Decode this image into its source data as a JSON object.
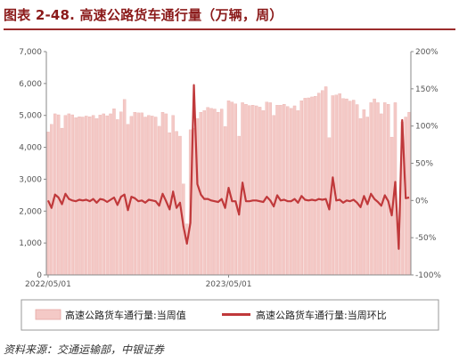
{
  "header": {
    "title": "图表 2-48. 高速公路货车通行量（万辆，周）"
  },
  "footer": {
    "source": "资料来源：交通运输部，中银证券"
  },
  "colors": {
    "bar_fill": "#f4c9c6",
    "bar_edge": "#e7a7a3",
    "line": "#c0393b",
    "title": "#8b1a1a"
  },
  "chart_data": {
    "type": "bar",
    "title": "",
    "xlabel": "",
    "ylabel": "",
    "ylim": [
      0,
      7000
    ],
    "y2lim": [
      -100,
      200
    ],
    "y_ticks": [
      "0",
      "1,000",
      "2,000",
      "3,000",
      "4,000",
      "5,000",
      "6,000",
      "7,000"
    ],
    "y2_ticks": [
      "-100%",
      "-50%",
      "0%",
      "50%",
      "100%",
      "150%",
      "200%"
    ],
    "x_tick_labels": [
      "2022/05/01",
      "2023/05/01"
    ],
    "legend_position": "bottom",
    "series": [
      {
        "name": "高速公路货车通行量:当周值",
        "type": "bar",
        "axis": "left",
        "values": [
          4480,
          4720,
          5050,
          5020,
          4600,
          5000,
          5050,
          5020,
          4930,
          4960,
          4950,
          4980,
          4960,
          5000,
          4900,
          5010,
          5050,
          4990,
          5050,
          5210,
          4870,
          5110,
          5500,
          4720,
          4970,
          5100,
          5080,
          5080,
          4950,
          5000,
          4980,
          4950,
          4660,
          5100,
          5050,
          4460,
          5000,
          4500,
          4350,
          2850,
          1600,
          4550,
          4600,
          4900,
          5100,
          5150,
          5250,
          5220,
          5200,
          5100,
          5200,
          4650,
          5460,
          5420,
          5360,
          4350,
          5400,
          5350,
          5310,
          5320,
          5300,
          5260,
          5150,
          5420,
          5400,
          5000,
          5320,
          5320,
          5350,
          5280,
          5220,
          5300,
          5150,
          5460,
          5540,
          5550,
          5580,
          5600,
          5700,
          5780,
          5900,
          4300,
          5620,
          5640,
          5680,
          5530,
          5520,
          5450,
          5480,
          5340,
          4900,
          5180,
          4950,
          5400,
          5520,
          5400,
          5050,
          5400,
          5350,
          4320,
          5400,
          1300,
          4800,
          4950,
          5100
        ]
      },
      {
        "name": "高速公路货车通行量:当周环比",
        "type": "line",
        "axis": "right",
        "values": [
          0,
          -10,
          8,
          4,
          -5,
          9,
          2,
          0,
          -1,
          1,
          0,
          1,
          -1,
          2,
          -3,
          2,
          1,
          -2,
          1,
          4,
          -6,
          5,
          8,
          -13,
          5,
          3,
          -1,
          0,
          -3,
          1,
          0,
          -1,
          -7,
          9,
          -1,
          -12,
          12,
          -10,
          -3,
          -35,
          -58,
          -30,
          155,
          22,
          8,
          2,
          2,
          0,
          -1,
          -2,
          2,
          -10,
          17,
          -1,
          -1,
          -19,
          24,
          -1,
          -1,
          0,
          0,
          -1,
          -2,
          5,
          0,
          -8,
          7,
          0,
          1,
          -1,
          -1,
          2,
          -3,
          6,
          1,
          0,
          1,
          0,
          2,
          1,
          2,
          -12,
          31,
          0,
          1,
          -3,
          0,
          -1,
          1,
          -3,
          -9,
          6,
          -5,
          9,
          2,
          -2,
          -7,
          7,
          -1,
          -20,
          25,
          -65,
          108,
          3,
          4
        ]
      }
    ]
  }
}
